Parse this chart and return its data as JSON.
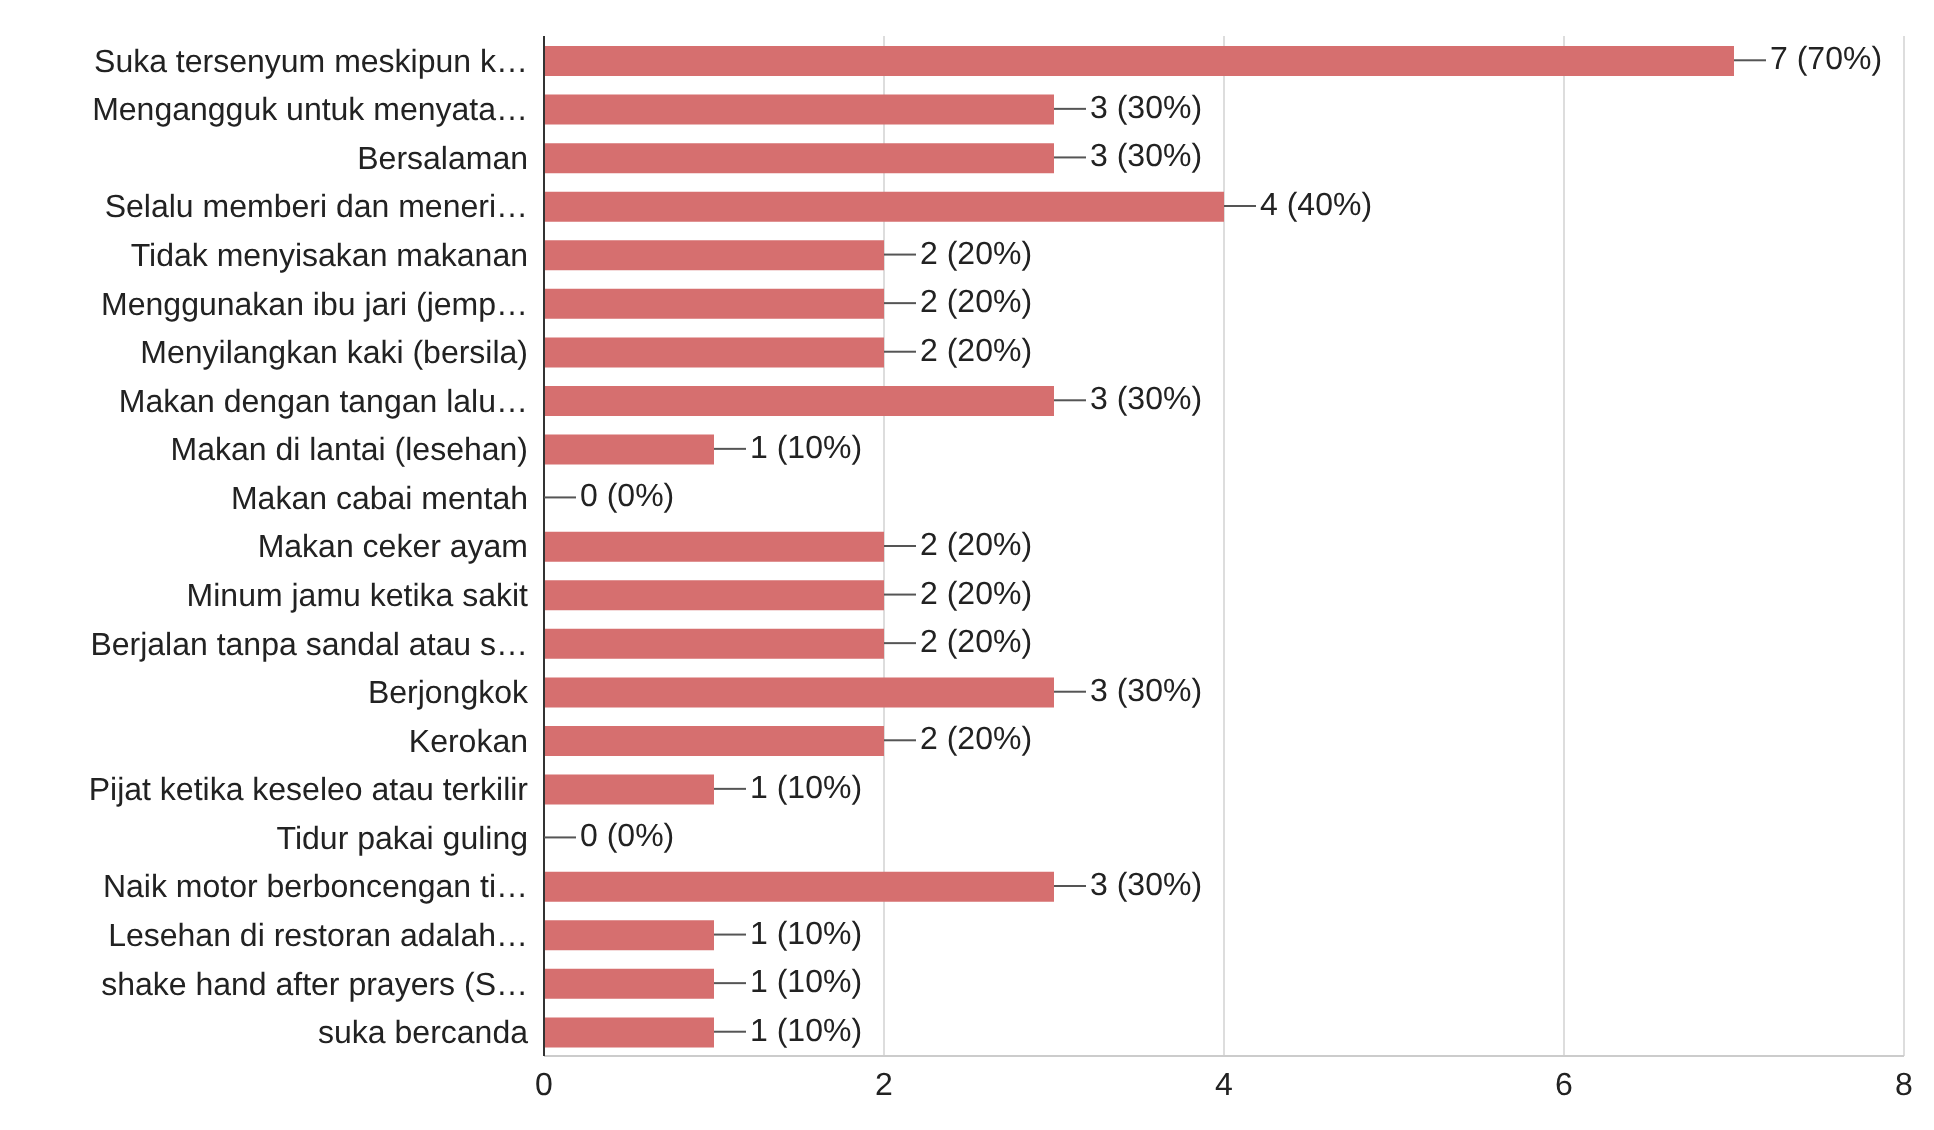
{
  "chart_data": {
    "type": "bar",
    "orientation": "horizontal",
    "categories": [
      "Suka tersenyum meskipun k…",
      "Mengangguk untuk menyata…",
      "Bersalaman",
      "Selalu memberi dan meneri…",
      "Tidak menyisakan makanan",
      "Menggunakan ibu jari (jemp…",
      "Menyilangkan kaki (bersila)",
      "Makan dengan tangan lalu…",
      "Makan di lantai (lesehan)",
      "Makan cabai mentah",
      "Makan ceker ayam",
      "Minum jamu ketika sakit",
      "Berjalan tanpa sandal atau s…",
      "Berjongkok",
      "Kerokan",
      "Pijat ketika keseleo atau terkilir",
      "Tidur pakai guling",
      "Naik motor berboncengan ti…",
      "Lesehan di restoran adalah…",
      "shake hand after prayers (S…",
      "suka bercanda"
    ],
    "values": [
      7,
      3,
      3,
      4,
      2,
      2,
      2,
      3,
      1,
      0,
      2,
      2,
      2,
      3,
      2,
      1,
      0,
      3,
      1,
      1,
      1
    ],
    "value_labels": [
      "7 (70%)",
      "3 (30%)",
      "3 (30%)",
      "4 (40%)",
      "2 (20%)",
      "2 (20%)",
      "2 (20%)",
      "3 (30%)",
      "1 (10%)",
      "0 (0%)",
      "2 (20%)",
      "2 (20%)",
      "2 (20%)",
      "3 (30%)",
      "2 (20%)",
      "1 (10%)",
      "0 (0%)",
      "3 (30%)",
      "1 (10%)",
      "1 (10%)",
      "1 (10%)"
    ],
    "color": "#d66f6f",
    "xlim": [
      0,
      8
    ],
    "xticks": [
      0,
      2,
      4,
      6,
      8
    ],
    "grid": "x"
  }
}
